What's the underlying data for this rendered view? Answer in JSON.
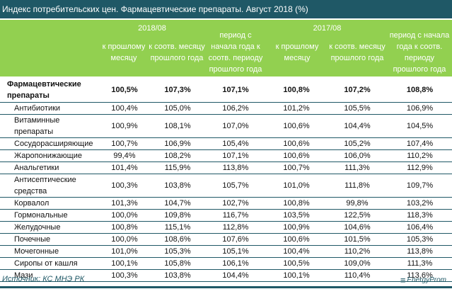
{
  "title": "Индекс потребительских цен. Фармацевтические препараты. Август 2018 (%)",
  "header": {
    "period1": "2018/08",
    "period2": "2017/08",
    "col_prev_month": "к прошлому месяцу",
    "col_same_month": "к соотв. месяцу прошлого года",
    "col_ytd": "период с начала года к соотв. периоду прошлого года"
  },
  "rows": [
    {
      "label": "Фармацевтические препараты",
      "values": [
        "100,5%",
        "107,3%",
        "107,1%",
        "100,8%",
        "107,2%",
        "108,8%"
      ]
    },
    {
      "label": "Антибиотики",
      "values": [
        "100,4%",
        "105,0%",
        "106,2%",
        "101,2%",
        "105,5%",
        "106,9%"
      ]
    },
    {
      "label": "Витаминные препараты",
      "values": [
        "100,9%",
        "108,1%",
        "107,0%",
        "100,6%",
        "104,4%",
        "104,5%"
      ]
    },
    {
      "label": "Сосудорасширяющие",
      "values": [
        "100,7%",
        "106,9%",
        "105,4%",
        "100,6%",
        "105,2%",
        "107,4%"
      ]
    },
    {
      "label": "Жаропонижающие",
      "values": [
        "99,4%",
        "108,2%",
        "107,1%",
        "100,6%",
        "106,0%",
        "110,2%"
      ]
    },
    {
      "label": "Анальгетики",
      "values": [
        "101,4%",
        "115,9%",
        "113,8%",
        "100,7%",
        "111,3%",
        "112,9%"
      ]
    },
    {
      "label": "Антисептические средства",
      "values": [
        "100,3%",
        "103,8%",
        "105,7%",
        "101,0%",
        "111,8%",
        "109,7%"
      ]
    },
    {
      "label": "Корвалол",
      "values": [
        "101,3%",
        "104,7%",
        "102,7%",
        "100,8%",
        "99,8%",
        "103,2%"
      ]
    },
    {
      "label": "Гормональные",
      "values": [
        "100,0%",
        "109,8%",
        "116,7%",
        "103,5%",
        "122,5%",
        "118,3%"
      ]
    },
    {
      "label": "Желудочные",
      "values": [
        "100,8%",
        "115,1%",
        "112,8%",
        "100,9%",
        "104,6%",
        "106,4%"
      ]
    },
    {
      "label": "Почечные",
      "values": [
        "100,0%",
        "108,6%",
        "107,6%",
        "100,6%",
        "101,5%",
        "105,3%"
      ]
    },
    {
      "label": "Мочегонные",
      "values": [
        "101,0%",
        "105,3%",
        "105,1%",
        "100,4%",
        "110,2%",
        "113,8%"
      ]
    },
    {
      "label": "Сиропы от кашля",
      "values": [
        "100,1%",
        "105,8%",
        "106,1%",
        "100,5%",
        "109,0%",
        "111,3%"
      ]
    },
    {
      "label": "Мази",
      "values": [
        "100,3%",
        "103,8%",
        "104,4%",
        "100,1%",
        "110,4%",
        "113,6%"
      ]
    }
  ],
  "source": "Источник: КС МНЭ РК",
  "logo": "EnergyProm",
  "colors": {
    "title_bg": "#1f5866",
    "header_bg": "#92d050"
  }
}
